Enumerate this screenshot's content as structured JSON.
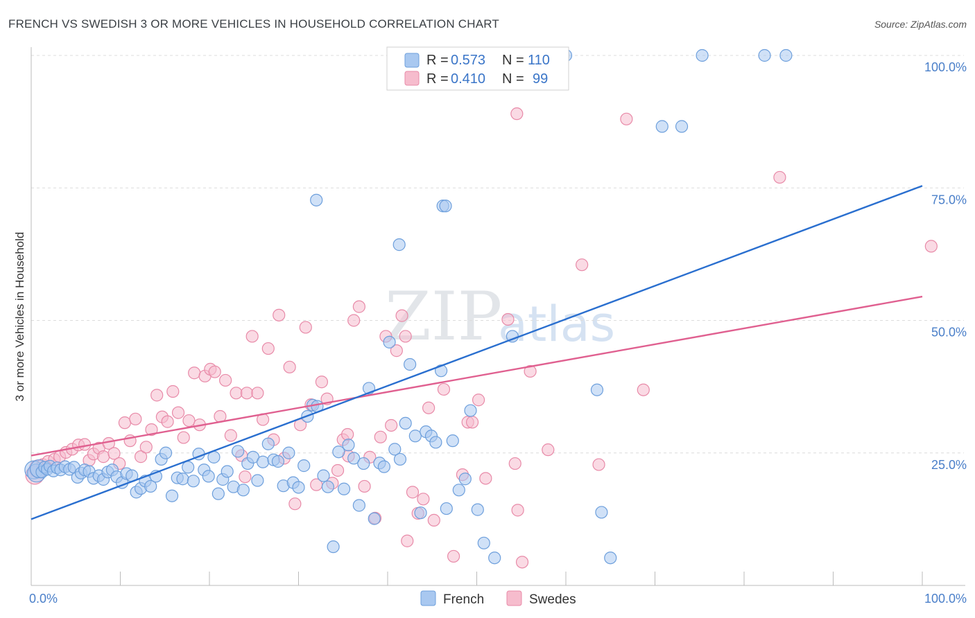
{
  "title": "FRENCH VS SWEDISH 3 OR MORE VEHICLES IN HOUSEHOLD CORRELATION CHART",
  "source": "Source: ZipAtlas.com",
  "watermark": {
    "zip": "ZIP",
    "atlas": "atlas"
  },
  "legend": {
    "french": {
      "r_label": "R = ",
      "r_value": "0.573",
      "n_label": "N = ",
      "n_value": "110"
    },
    "swedes": {
      "r_label": "R = ",
      "r_value": "0.410",
      "n_label": "N = ",
      "n_value": "99"
    }
  },
  "colors": {
    "french_fill": "#a9c8f0",
    "french_stroke": "#6d9fdc",
    "french_line": "#2a6fcf",
    "swedes_fill": "#f6bccd",
    "swedes_stroke": "#e88aa8",
    "swedes_line": "#e06090",
    "grid": "#dcdcdc",
    "axis": "#bbbbbb",
    "tick_text": "#4a7fc9"
  },
  "chart_data": {
    "type": "scatter",
    "title": "FRENCH VS SWEDISH 3 OR MORE VEHICLES IN HOUSEHOLD CORRELATION CHART",
    "xlabel": "",
    "ylabel": "3 or more Vehicles in Household",
    "xlim": [
      0,
      100
    ],
    "ylim": [
      0,
      100
    ],
    "x_tick_labels": [
      "0.0%",
      "100.0%"
    ],
    "y_ticks": [
      25,
      50,
      75,
      100
    ],
    "y_tick_labels": [
      "25.0%",
      "50.0%",
      "75.0%",
      "100.0%"
    ],
    "grid": true,
    "legend_position": "top-center",
    "series": [
      {
        "name": "French",
        "r": 0.573,
        "n": 110,
        "trend": {
          "x": [
            0,
            100
          ],
          "y": [
            12.5,
            75.4
          ]
        },
        "points": [
          [
            0.3,
            21.8
          ],
          [
            0.6,
            21.2
          ],
          [
            0.9,
            22.0
          ],
          [
            1.2,
            21.4
          ],
          [
            1.5,
            22.3
          ],
          [
            1.8,
            21.9
          ],
          [
            2.1,
            22.5
          ],
          [
            2.5,
            21.6
          ],
          [
            2.9,
            22.2
          ],
          [
            3.3,
            21.8
          ],
          [
            3.8,
            22.4
          ],
          [
            4.3,
            21.9
          ],
          [
            4.8,
            22.3
          ],
          [
            5.2,
            20.4
          ],
          [
            5.6,
            21.2
          ],
          [
            6.0,
            21.8
          ],
          [
            6.5,
            21.5
          ],
          [
            7.0,
            20.2
          ],
          [
            7.6,
            20.7
          ],
          [
            8.1,
            20.0
          ],
          [
            8.6,
            21.4
          ],
          [
            9.1,
            21.8
          ],
          [
            9.6,
            20.5
          ],
          [
            10.2,
            19.4
          ],
          [
            10.7,
            21.1
          ],
          [
            11.3,
            20.7
          ],
          [
            11.8,
            17.6
          ],
          [
            12.3,
            18.3
          ],
          [
            12.8,
            19.7
          ],
          [
            13.4,
            18.7
          ],
          [
            14.0,
            20.6
          ],
          [
            14.6,
            23.8
          ],
          [
            15.1,
            25.0
          ],
          [
            15.8,
            16.9
          ],
          [
            16.4,
            20.3
          ],
          [
            17.0,
            20.1
          ],
          [
            17.6,
            22.3
          ],
          [
            18.2,
            19.7
          ],
          [
            18.8,
            24.8
          ],
          [
            19.4,
            21.8
          ],
          [
            19.9,
            20.6
          ],
          [
            20.5,
            24.2
          ],
          [
            21.0,
            17.3
          ],
          [
            21.5,
            20.0
          ],
          [
            22.0,
            21.5
          ],
          [
            22.7,
            18.6
          ],
          [
            23.2,
            25.3
          ],
          [
            23.8,
            18.0
          ],
          [
            24.3,
            23.0
          ],
          [
            24.9,
            24.2
          ],
          [
            25.4,
            19.8
          ],
          [
            26.0,
            23.3
          ],
          [
            26.6,
            26.7
          ],
          [
            27.2,
            23.7
          ],
          [
            27.7,
            23.4
          ],
          [
            28.3,
            18.8
          ],
          [
            28.9,
            25.0
          ],
          [
            29.4,
            19.4
          ],
          [
            30.0,
            18.5
          ],
          [
            30.6,
            22.6
          ],
          [
            31.0,
            31.9
          ],
          [
            31.6,
            34.0
          ],
          [
            32.1,
            33.8
          ],
          [
            32.8,
            20.7
          ],
          [
            33.3,
            18.6
          ],
          [
            33.9,
            7.3
          ],
          [
            34.5,
            25.2
          ],
          [
            35.1,
            18.2
          ],
          [
            35.6,
            26.5
          ],
          [
            36.2,
            24.0
          ],
          [
            36.8,
            15.1
          ],
          [
            37.3,
            23.0
          ],
          [
            37.9,
            37.2
          ],
          [
            38.5,
            12.6
          ],
          [
            39.1,
            23.1
          ],
          [
            39.6,
            22.4
          ],
          [
            40.2,
            45.9
          ],
          [
            40.8,
            25.7
          ],
          [
            41.4,
            23.8
          ],
          [
            42.0,
            30.6
          ],
          [
            42.5,
            41.7
          ],
          [
            43.1,
            28.2
          ],
          [
            43.7,
            13.7
          ],
          [
            44.3,
            29.0
          ],
          [
            44.9,
            28.2
          ],
          [
            45.4,
            27.0
          ],
          [
            46.0,
            40.5
          ],
          [
            46.6,
            14.5
          ],
          [
            47.3,
            27.3
          ],
          [
            48.0,
            18.0
          ],
          [
            48.7,
            20.1
          ],
          [
            49.3,
            33.0
          ],
          [
            50.1,
            14.3
          ],
          [
            50.8,
            8.0
          ],
          [
            52.0,
            5.2
          ],
          [
            54.0,
            47.0
          ],
          [
            63.5,
            36.9
          ],
          [
            65.0,
            5.2
          ],
          [
            32.0,
            72.7
          ],
          [
            41.3,
            64.3
          ],
          [
            46.2,
            71.6
          ],
          [
            46.5,
            71.6
          ],
          [
            57.0,
            100.0
          ],
          [
            60.0,
            100.0
          ],
          [
            70.8,
            86.6
          ],
          [
            73.0,
            86.6
          ],
          [
            75.3,
            100.0
          ],
          [
            82.3,
            100.0
          ],
          [
            84.7,
            100.0
          ],
          [
            64.0,
            13.8
          ]
        ]
      },
      {
        "name": "Swedes",
        "r": 0.41,
        "n": 99,
        "trend": {
          "x": [
            0,
            100
          ],
          "y": [
            24.5,
            54.5
          ]
        },
        "points": [
          [
            0.4,
            20.8
          ],
          [
            0.8,
            22.0
          ],
          [
            1.3,
            22.8
          ],
          [
            1.9,
            23.4
          ],
          [
            2.6,
            23.8
          ],
          [
            3.2,
            24.3
          ],
          [
            3.9,
            25.1
          ],
          [
            4.6,
            25.7
          ],
          [
            5.3,
            26.5
          ],
          [
            6.0,
            26.6
          ],
          [
            6.5,
            23.6
          ],
          [
            7.0,
            24.8
          ],
          [
            7.6,
            25.9
          ],
          [
            8.1,
            24.3
          ],
          [
            8.7,
            26.8
          ],
          [
            9.3,
            24.9
          ],
          [
            9.9,
            23.0
          ],
          [
            10.5,
            30.7
          ],
          [
            11.1,
            27.3
          ],
          [
            11.7,
            31.4
          ],
          [
            12.3,
            24.3
          ],
          [
            12.9,
            26.1
          ],
          [
            13.5,
            29.4
          ],
          [
            14.1,
            35.9
          ],
          [
            14.7,
            31.8
          ],
          [
            15.3,
            30.9
          ],
          [
            15.9,
            36.6
          ],
          [
            16.5,
            32.6
          ],
          [
            17.1,
            27.9
          ],
          [
            17.7,
            31.1
          ],
          [
            18.3,
            40.1
          ],
          [
            18.9,
            30.3
          ],
          [
            19.5,
            39.5
          ],
          [
            20.1,
            40.8
          ],
          [
            20.6,
            40.3
          ],
          [
            21.2,
            31.9
          ],
          [
            21.8,
            38.7
          ],
          [
            22.4,
            28.3
          ],
          [
            23.0,
            36.3
          ],
          [
            23.6,
            24.5
          ],
          [
            24.2,
            36.3
          ],
          [
            24.8,
            47.0
          ],
          [
            25.4,
            36.3
          ],
          [
            26.0,
            31.3
          ],
          [
            26.6,
            44.7
          ],
          [
            27.2,
            27.5
          ],
          [
            27.8,
            51.0
          ],
          [
            28.4,
            24.0
          ],
          [
            29.0,
            41.2
          ],
          [
            29.6,
            15.4
          ],
          [
            30.2,
            30.3
          ],
          [
            30.8,
            48.7
          ],
          [
            31.4,
            34.1
          ],
          [
            32.0,
            19.0
          ],
          [
            32.6,
            38.4
          ],
          [
            33.2,
            35.2
          ],
          [
            33.8,
            19.3
          ],
          [
            34.4,
            21.7
          ],
          [
            35.0,
            27.5
          ],
          [
            35.6,
            24.4
          ],
          [
            36.2,
            50.0
          ],
          [
            36.8,
            52.6
          ],
          [
            37.4,
            18.7
          ],
          [
            38.0,
            24.2
          ],
          [
            38.6,
            12.7
          ],
          [
            39.2,
            28.0
          ],
          [
            39.8,
            47.0
          ],
          [
            40.4,
            30.2
          ],
          [
            41.0,
            44.3
          ],
          [
            41.6,
            50.9
          ],
          [
            42.2,
            8.4
          ],
          [
            42.8,
            17.6
          ],
          [
            43.4,
            13.6
          ],
          [
            44.0,
            16.3
          ],
          [
            44.6,
            33.5
          ],
          [
            45.2,
            12.3
          ],
          [
            46.3,
            37.0
          ],
          [
            47.4,
            5.5
          ],
          [
            48.4,
            20.9
          ],
          [
            49.0,
            30.8
          ],
          [
            49.5,
            30.8
          ],
          [
            50.2,
            35.0
          ],
          [
            51.0,
            20.2
          ],
          [
            53.5,
            50.2
          ],
          [
            54.3,
            23.0
          ],
          [
            55.1,
            4.4
          ],
          [
            56.0,
            40.4
          ],
          [
            58.0,
            25.6
          ],
          [
            63.7,
            22.8
          ],
          [
            68.7,
            36.9
          ],
          [
            84.0,
            77.0
          ],
          [
            101.0,
            64.0
          ],
          [
            54.5,
            89.0
          ],
          [
            66.8,
            88.0
          ],
          [
            61.8,
            60.5
          ],
          [
            42.0,
            47.0
          ],
          [
            54.6,
            14.2
          ],
          [
            24.0,
            20.5
          ],
          [
            35.5,
            28.5
          ]
        ]
      }
    ]
  },
  "bottom_legend": {
    "french": "French",
    "swedes": "Swedes"
  }
}
